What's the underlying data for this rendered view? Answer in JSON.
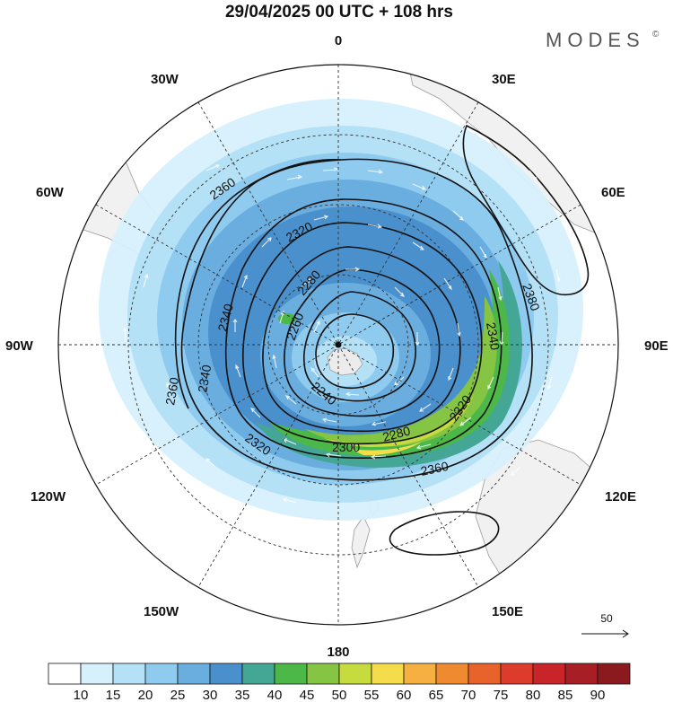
{
  "title": "29/04/2025  00 UTC  + 108 hrs",
  "brand": "MODES",
  "brand_mark": "©",
  "longitude_labels": [
    {
      "text": "0",
      "anchor": "top"
    },
    {
      "text": "30E",
      "anchor": "upper-right"
    },
    {
      "text": "60E",
      "anchor": "right-upper"
    },
    {
      "text": "90E",
      "anchor": "right"
    },
    {
      "text": "120E",
      "anchor": "right-lower"
    },
    {
      "text": "150E",
      "anchor": "lower-right"
    },
    {
      "text": "180",
      "anchor": "bottom"
    },
    {
      "text": "150W",
      "anchor": "lower-left"
    },
    {
      "text": "120W",
      "anchor": "left-lower"
    },
    {
      "text": "90W",
      "anchor": "left"
    },
    {
      "text": "60W",
      "anchor": "left-upper"
    },
    {
      "text": "30W",
      "anchor": "upper-left"
    }
  ],
  "contour_labels": [
    "2360",
    "2320",
    "2280",
    "2260",
    "2240",
    "2300",
    "2280",
    "2320",
    "2340",
    "2340",
    "2360",
    "2360",
    "2380",
    "2340",
    "2320"
  ],
  "vector_reference": "50",
  "colorbar": {
    "ticks": [
      "10",
      "15",
      "20",
      "25",
      "30",
      "35",
      "40",
      "45",
      "50",
      "55",
      "60",
      "65",
      "70",
      "75",
      "80",
      "85",
      "90"
    ],
    "colors": [
      "#ffffff",
      "#d6f0fc",
      "#b5e1f7",
      "#8fcaef",
      "#6aaee0",
      "#4a90cc",
      "#44a796",
      "#4cb848",
      "#86c443",
      "#c6db3e",
      "#f4dc4a",
      "#f5b041",
      "#f08a30",
      "#e8622c",
      "#dd3b2b",
      "#c8242a",
      "#a81e25",
      "#8b1a1f"
    ]
  },
  "colors": {
    "land": "#f1f1f1",
    "coast": "#999999",
    "contour": "#111111",
    "grid": "#333333"
  }
}
